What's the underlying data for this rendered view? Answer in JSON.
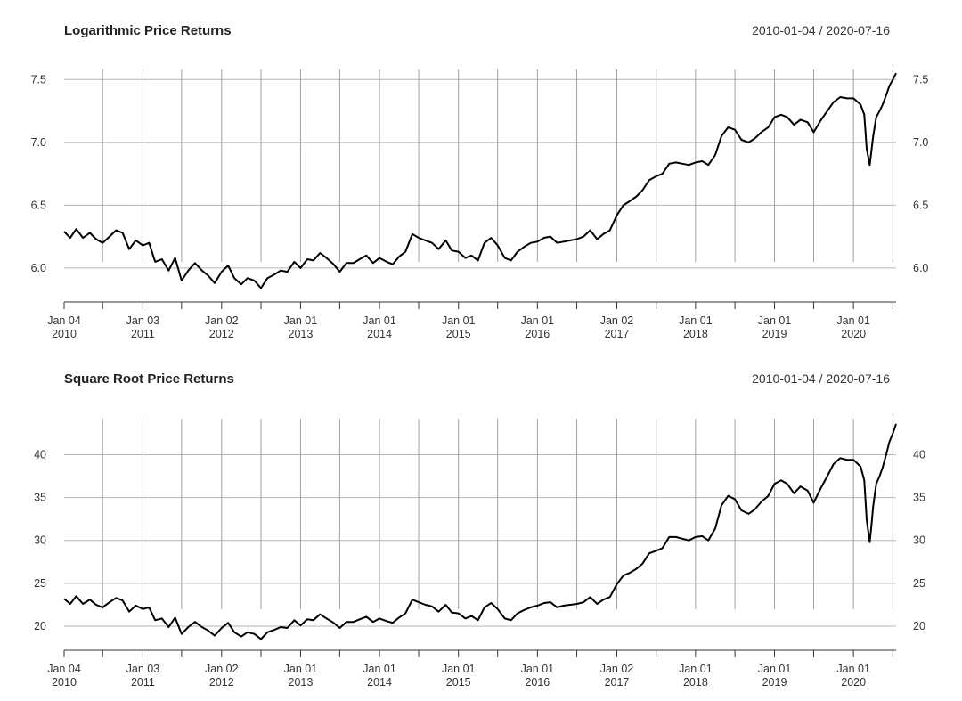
{
  "chart_data": [
    {
      "type": "line",
      "title": "Logarithmic Price Returns",
      "date_range": "2010-01-04 / 2020-07-16",
      "ylim": [
        5.73,
        7.58
      ],
      "y_ticks": [
        6.0,
        6.5,
        7.0,
        7.5
      ],
      "y_tick_labels": [
        "6.0",
        "6.5",
        "7.0",
        "7.5"
      ],
      "grid": true,
      "x_ticks": [
        {
          "date": "2010-01-04",
          "label1": "Jan 04",
          "label2": "2010"
        },
        {
          "date": "2011-01-03",
          "label1": "Jan 03",
          "label2": "2011"
        },
        {
          "date": "2012-01-02",
          "label1": "Jan 02",
          "label2": "2012"
        },
        {
          "date": "2013-01-01",
          "label1": "Jan 01",
          "label2": "2013"
        },
        {
          "date": "2014-01-01",
          "label1": "Jan 01",
          "label2": "2014"
        },
        {
          "date": "2015-01-01",
          "label1": "Jan 01",
          "label2": "2015"
        },
        {
          "date": "2016-01-01",
          "label1": "Jan 01",
          "label2": "2016"
        },
        {
          "date": "2017-01-02",
          "label1": "Jan 02",
          "label2": "2017"
        },
        {
          "date": "2018-01-01",
          "label1": "Jan 01",
          "label2": "2018"
        },
        {
          "date": "2019-01-01",
          "label1": "Jan 01",
          "label2": "2019"
        },
        {
          "date": "2020-01-01",
          "label1": "Jan 01",
          "label2": "2020"
        }
      ],
      "minor_ticks": [
        "2010-07-01",
        "2011-07-01",
        "2012-07-02",
        "2013-07-01",
        "2014-07-01",
        "2015-07-01",
        "2016-07-01",
        "2017-07-03",
        "2018-07-02",
        "2019-07-01",
        "2020-07-01"
      ],
      "series": [
        {
          "color": "#000000",
          "x": [
            "2010-01-04",
            "2010-02-01",
            "2010-03-01",
            "2010-04-01",
            "2010-05-03",
            "2010-06-01",
            "2010-07-01",
            "2010-08-02",
            "2010-09-01",
            "2010-10-01",
            "2010-11-01",
            "2010-12-01",
            "2011-01-03",
            "2011-02-01",
            "2011-03-01",
            "2011-04-01",
            "2011-05-02",
            "2011-06-01",
            "2011-07-01",
            "2011-08-01",
            "2011-09-01",
            "2011-10-03",
            "2011-11-01",
            "2011-12-01",
            "2012-01-02",
            "2012-02-01",
            "2012-03-01",
            "2012-04-02",
            "2012-05-01",
            "2012-06-01",
            "2012-07-02",
            "2012-08-01",
            "2012-09-03",
            "2012-10-01",
            "2012-11-01",
            "2012-12-03",
            "2013-01-01",
            "2013-02-01",
            "2013-03-01",
            "2013-04-01",
            "2013-05-01",
            "2013-06-03",
            "2013-07-01",
            "2013-08-01",
            "2013-09-02",
            "2013-10-01",
            "2013-11-01",
            "2013-12-02",
            "2014-01-01",
            "2014-02-03",
            "2014-03-03",
            "2014-04-01",
            "2014-05-01",
            "2014-06-02",
            "2014-07-01",
            "2014-08-01",
            "2014-09-01",
            "2014-10-01",
            "2014-11-03",
            "2014-12-01",
            "2015-01-01",
            "2015-02-02",
            "2015-03-02",
            "2015-04-01",
            "2015-05-01",
            "2015-06-01",
            "2015-07-01",
            "2015-08-03",
            "2015-09-01",
            "2015-10-01",
            "2015-11-02",
            "2015-12-01",
            "2016-01-01",
            "2016-02-01",
            "2016-03-01",
            "2016-04-01",
            "2016-05-02",
            "2016-06-01",
            "2016-07-01",
            "2016-08-01",
            "2016-09-01",
            "2016-10-03",
            "2016-11-01",
            "2016-12-01",
            "2017-01-02",
            "2017-02-01",
            "2017-03-01",
            "2017-04-03",
            "2017-05-01",
            "2017-06-01",
            "2017-07-03",
            "2017-08-01",
            "2017-09-01",
            "2017-10-02",
            "2017-11-01",
            "2017-12-01",
            "2018-01-01",
            "2018-02-01",
            "2018-03-01",
            "2018-04-02",
            "2018-05-01",
            "2018-06-01",
            "2018-07-02",
            "2018-08-01",
            "2018-09-03",
            "2018-10-01",
            "2018-11-01",
            "2018-12-03",
            "2019-01-01",
            "2019-02-01",
            "2019-03-01",
            "2019-04-01",
            "2019-05-01",
            "2019-06-03",
            "2019-07-01",
            "2019-08-01",
            "2019-09-02",
            "2019-10-01",
            "2019-11-01",
            "2019-12-02",
            "2020-01-01",
            "2020-02-03",
            "2020-02-20",
            "2020-03-02",
            "2020-03-16",
            "2020-03-23",
            "2020-04-01",
            "2020-04-15",
            "2020-05-01",
            "2020-05-15",
            "2020-06-01",
            "2020-06-15",
            "2020-07-01",
            "2020-07-16"
          ],
          "values": [
            6.29,
            6.24,
            6.31,
            6.24,
            6.28,
            6.23,
            6.2,
            6.25,
            6.3,
            6.28,
            6.15,
            6.22,
            6.18,
            6.2,
            6.05,
            6.07,
            5.98,
            6.08,
            5.9,
            5.98,
            6.04,
            5.98,
            5.94,
            5.88,
            5.97,
            6.02,
            5.92,
            5.87,
            5.92,
            5.9,
            5.84,
            5.92,
            5.95,
            5.98,
            5.97,
            6.05,
            6.0,
            6.07,
            6.06,
            6.12,
            6.08,
            6.03,
            5.97,
            6.04,
            6.04,
            6.07,
            6.1,
            6.04,
            6.08,
            6.05,
            6.03,
            6.09,
            6.13,
            6.27,
            6.24,
            6.22,
            6.2,
            6.15,
            6.22,
            6.14,
            6.13,
            6.08,
            6.1,
            6.06,
            6.2,
            6.24,
            6.18,
            6.08,
            6.06,
            6.13,
            6.17,
            6.2,
            6.21,
            6.24,
            6.25,
            6.2,
            6.21,
            6.22,
            6.23,
            6.25,
            6.3,
            6.23,
            6.27,
            6.3,
            6.42,
            6.5,
            6.53,
            6.57,
            6.62,
            6.7,
            6.73,
            6.75,
            6.83,
            6.84,
            6.83,
            6.82,
            6.84,
            6.85,
            6.82,
            6.9,
            7.05,
            7.12,
            7.1,
            7.02,
            7.0,
            7.03,
            7.08,
            7.12,
            7.2,
            7.22,
            7.2,
            7.14,
            7.18,
            7.16,
            7.08,
            7.17,
            7.25,
            7.32,
            7.36,
            7.35,
            7.35,
            7.3,
            7.22,
            6.95,
            6.82,
            6.92,
            7.05,
            7.2,
            7.25,
            7.3,
            7.38,
            7.45,
            7.5,
            7.55
          ]
        }
      ]
    },
    {
      "type": "line",
      "title": "Square Root Price Returns",
      "date_range": "2010-01-04 / 2020-07-16",
      "ylim": [
        17.2,
        44.2
      ],
      "y_ticks": [
        20,
        25,
        30,
        35,
        40
      ],
      "y_tick_labels": [
        "20",
        "25",
        "30",
        "35",
        "40"
      ],
      "grid": true,
      "x_ticks": [
        {
          "date": "2010-01-04",
          "label1": "Jan 04",
          "label2": "2010"
        },
        {
          "date": "2011-01-03",
          "label1": "Jan 03",
          "label2": "2011"
        },
        {
          "date": "2012-01-02",
          "label1": "Jan 02",
          "label2": "2012"
        },
        {
          "date": "2013-01-01",
          "label1": "Jan 01",
          "label2": "2013"
        },
        {
          "date": "2014-01-01",
          "label1": "Jan 01",
          "label2": "2014"
        },
        {
          "date": "2015-01-01",
          "label1": "Jan 01",
          "label2": "2015"
        },
        {
          "date": "2016-01-01",
          "label1": "Jan 01",
          "label2": "2016"
        },
        {
          "date": "2017-01-02",
          "label1": "Jan 02",
          "label2": "2017"
        },
        {
          "date": "2018-01-01",
          "label1": "Jan 01",
          "label2": "2018"
        },
        {
          "date": "2019-01-01",
          "label1": "Jan 01",
          "label2": "2019"
        },
        {
          "date": "2020-01-01",
          "label1": "Jan 01",
          "label2": "2020"
        }
      ],
      "minor_ticks": [
        "2010-07-01",
        "2011-07-01",
        "2012-07-02",
        "2013-07-01",
        "2014-07-01",
        "2015-07-01",
        "2016-07-01",
        "2017-07-03",
        "2018-07-02",
        "2019-07-01",
        "2020-07-01"
      ],
      "series": [
        {
          "color": "#000000",
          "x": [
            "2010-01-04",
            "2010-02-01",
            "2010-03-01",
            "2010-04-01",
            "2010-05-03",
            "2010-06-01",
            "2010-07-01",
            "2010-08-02",
            "2010-09-01",
            "2010-10-01",
            "2010-11-01",
            "2010-12-01",
            "2011-01-03",
            "2011-02-01",
            "2011-03-01",
            "2011-04-01",
            "2011-05-02",
            "2011-06-01",
            "2011-07-01",
            "2011-08-01",
            "2011-09-01",
            "2011-10-03",
            "2011-11-01",
            "2011-12-01",
            "2012-01-02",
            "2012-02-01",
            "2012-03-01",
            "2012-04-02",
            "2012-05-01",
            "2012-06-01",
            "2012-07-02",
            "2012-08-01",
            "2012-09-03",
            "2012-10-01",
            "2012-11-01",
            "2012-12-03",
            "2013-01-01",
            "2013-02-01",
            "2013-03-01",
            "2013-04-01",
            "2013-05-01",
            "2013-06-03",
            "2013-07-01",
            "2013-08-01",
            "2013-09-02",
            "2013-10-01",
            "2013-11-01",
            "2013-12-02",
            "2014-01-01",
            "2014-02-03",
            "2014-03-03",
            "2014-04-01",
            "2014-05-01",
            "2014-06-02",
            "2014-07-01",
            "2014-08-01",
            "2014-09-01",
            "2014-10-01",
            "2014-11-03",
            "2014-12-01",
            "2015-01-01",
            "2015-02-02",
            "2015-03-02",
            "2015-04-01",
            "2015-05-01",
            "2015-06-01",
            "2015-07-01",
            "2015-08-03",
            "2015-09-01",
            "2015-10-01",
            "2015-11-02",
            "2015-12-01",
            "2016-01-01",
            "2016-02-01",
            "2016-03-01",
            "2016-04-01",
            "2016-05-02",
            "2016-06-01",
            "2016-07-01",
            "2016-08-01",
            "2016-09-01",
            "2016-10-03",
            "2016-11-01",
            "2016-12-01",
            "2017-01-02",
            "2017-02-01",
            "2017-03-01",
            "2017-04-03",
            "2017-05-01",
            "2017-06-01",
            "2017-07-03",
            "2017-08-01",
            "2017-09-01",
            "2017-10-02",
            "2017-11-01",
            "2017-12-01",
            "2018-01-01",
            "2018-02-01",
            "2018-03-01",
            "2018-04-02",
            "2018-05-01",
            "2018-06-01",
            "2018-07-02",
            "2018-08-01",
            "2018-09-03",
            "2018-10-01",
            "2018-11-01",
            "2018-12-03",
            "2019-01-01",
            "2019-02-01",
            "2019-03-01",
            "2019-04-01",
            "2019-05-01",
            "2019-06-03",
            "2019-07-01",
            "2019-08-01",
            "2019-09-02",
            "2019-10-01",
            "2019-11-01",
            "2019-12-02",
            "2020-01-01",
            "2020-02-03",
            "2020-02-20",
            "2020-03-02",
            "2020-03-16",
            "2020-03-23",
            "2020-04-01",
            "2020-04-15",
            "2020-05-01",
            "2020-05-15",
            "2020-06-01",
            "2020-06-15",
            "2020-07-01",
            "2020-07-16"
          ],
          "values": [
            23.2,
            22.6,
            23.5,
            22.6,
            23.1,
            22.5,
            22.2,
            22.8,
            23.3,
            23.0,
            21.7,
            22.4,
            22.0,
            22.2,
            20.7,
            20.9,
            19.9,
            21.0,
            19.1,
            19.9,
            20.5,
            19.9,
            19.5,
            18.9,
            19.8,
            20.4,
            19.3,
            18.8,
            19.3,
            19.1,
            18.5,
            19.3,
            19.6,
            19.9,
            19.8,
            20.7,
            20.1,
            20.8,
            20.7,
            21.4,
            20.9,
            20.4,
            19.8,
            20.5,
            20.5,
            20.8,
            21.1,
            20.5,
            20.9,
            20.6,
            20.4,
            21.0,
            21.5,
            23.1,
            22.8,
            22.5,
            22.3,
            21.7,
            22.5,
            21.6,
            21.5,
            20.9,
            21.2,
            20.7,
            22.2,
            22.7,
            22.0,
            20.9,
            20.7,
            21.5,
            21.9,
            22.2,
            22.4,
            22.7,
            22.8,
            22.2,
            22.4,
            22.5,
            22.6,
            22.8,
            23.4,
            22.6,
            23.1,
            23.4,
            24.9,
            25.9,
            26.2,
            26.7,
            27.3,
            28.5,
            28.8,
            29.1,
            30.4,
            30.4,
            30.2,
            30.0,
            30.4,
            30.5,
            30.0,
            31.4,
            34.1,
            35.2,
            34.8,
            33.5,
            33.1,
            33.6,
            34.5,
            35.2,
            36.6,
            37.0,
            36.6,
            35.5,
            36.3,
            35.8,
            34.4,
            36.0,
            37.5,
            38.9,
            39.6,
            39.4,
            39.4,
            38.6,
            37.0,
            32.4,
            29.8,
            31.5,
            34.0,
            36.6,
            37.5,
            38.5,
            40.1,
            41.5,
            42.5,
            43.6
          ]
        }
      ]
    }
  ]
}
